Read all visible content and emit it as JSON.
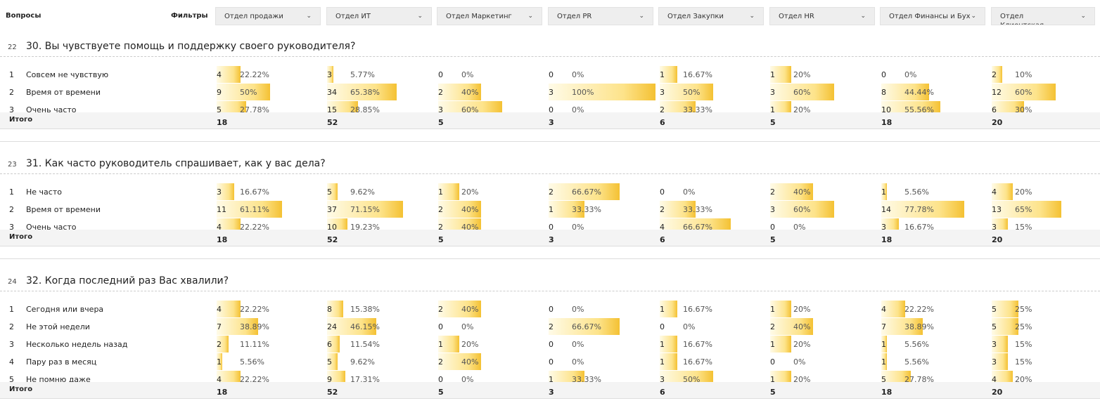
{
  "header": {
    "questions_label": "Вопросы",
    "filters_label": "Фильтры",
    "filters": [
      {
        "label": "Отдел продажи",
        "icon": "chevron-down-icon"
      },
      {
        "label": "Отдел ИТ",
        "icon": "chevron-down-icon"
      },
      {
        "label": "Отдел Маркетинг",
        "icon": "chevron-down-icon"
      },
      {
        "label": "Отдел PR",
        "icon": "chevron-down-icon"
      },
      {
        "label": "Отдел Закупки",
        "icon": "chevron-down-icon"
      },
      {
        "label": "Отдел HR",
        "icon": "chevron-down-icon"
      },
      {
        "label": "Отдел Финансы и Бух",
        "icon": "chevron-down-icon"
      },
      {
        "label": "Отдел Клиентская служба",
        "icon": "chevron-down-icon"
      }
    ]
  },
  "total_label": "Итого",
  "sections": [
    {
      "num": "22",
      "title": "30. Вы чувствуете помощь и поддержку своего руководителя?",
      "rows": [
        {
          "idx": "1",
          "label": "Совсем не чувствую",
          "cells": [
            {
              "count": "4",
              "pct": "22.22%",
              "value": 22.22
            },
            {
              "count": "3",
              "pct": "5.77%",
              "value": 5.77
            },
            {
              "count": "0",
              "pct": "0%",
              "value": 0
            },
            {
              "count": "0",
              "pct": "0%",
              "value": 0
            },
            {
              "count": "1",
              "pct": "16.67%",
              "value": 16.67
            },
            {
              "count": "1",
              "pct": "20%",
              "value": 20
            },
            {
              "count": "0",
              "pct": "0%",
              "value": 0
            },
            {
              "count": "2",
              "pct": "10%",
              "value": 10
            }
          ]
        },
        {
          "idx": "2",
          "label": "Время от времени",
          "cells": [
            {
              "count": "9",
              "pct": "50%",
              "value": 50
            },
            {
              "count": "34",
              "pct": "65.38%",
              "value": 65.38
            },
            {
              "count": "2",
              "pct": "40%",
              "value": 40
            },
            {
              "count": "3",
              "pct": "100%",
              "value": 100
            },
            {
              "count": "3",
              "pct": "50%",
              "value": 50
            },
            {
              "count": "3",
              "pct": "60%",
              "value": 60
            },
            {
              "count": "8",
              "pct": "44.44%",
              "value": 44.44
            },
            {
              "count": "12",
              "pct": "60%",
              "value": 60
            }
          ]
        },
        {
          "idx": "3",
          "label": "Очень часто",
          "cells": [
            {
              "count": "5",
              "pct": "27.78%",
              "value": 27.78
            },
            {
              "count": "15",
              "pct": "28.85%",
              "value": 28.85
            },
            {
              "count": "3",
              "pct": "60%",
              "value": 60
            },
            {
              "count": "0",
              "pct": "0%",
              "value": 0
            },
            {
              "count": "2",
              "pct": "33.33%",
              "value": 33.33
            },
            {
              "count": "1",
              "pct": "20%",
              "value": 20
            },
            {
              "count": "10",
              "pct": "55.56%",
              "value": 55.56
            },
            {
              "count": "6",
              "pct": "30%",
              "value": 30
            }
          ]
        }
      ],
      "totals": [
        "18",
        "52",
        "5",
        "3",
        "6",
        "5",
        "18",
        "20"
      ]
    },
    {
      "num": "23",
      "title": "31. Как часто руководитель спрашивает, как у вас дела?",
      "rows": [
        {
          "idx": "1",
          "label": "Не часто",
          "cells": [
            {
              "count": "3",
              "pct": "16.67%",
              "value": 16.67
            },
            {
              "count": "5",
              "pct": "9.62%",
              "value": 9.62
            },
            {
              "count": "1",
              "pct": "20%",
              "value": 20
            },
            {
              "count": "2",
              "pct": "66.67%",
              "value": 66.67
            },
            {
              "count": "0",
              "pct": "0%",
              "value": 0
            },
            {
              "count": "2",
              "pct": "40%",
              "value": 40
            },
            {
              "count": "1",
              "pct": "5.56%",
              "value": 5.56
            },
            {
              "count": "4",
              "pct": "20%",
              "value": 20
            }
          ]
        },
        {
          "idx": "2",
          "label": "Время от времени",
          "cells": [
            {
              "count": "11",
              "pct": "61.11%",
              "value": 61.11
            },
            {
              "count": "37",
              "pct": "71.15%",
              "value": 71.15
            },
            {
              "count": "2",
              "pct": "40%",
              "value": 40
            },
            {
              "count": "1",
              "pct": "33.33%",
              "value": 33.33
            },
            {
              "count": "2",
              "pct": "33.33%",
              "value": 33.33
            },
            {
              "count": "3",
              "pct": "60%",
              "value": 60
            },
            {
              "count": "14",
              "pct": "77.78%",
              "value": 77.78
            },
            {
              "count": "13",
              "pct": "65%",
              "value": 65
            }
          ]
        },
        {
          "idx": "3",
          "label": "Очень часто",
          "cells": [
            {
              "count": "4",
              "pct": "22.22%",
              "value": 22.22
            },
            {
              "count": "10",
              "pct": "19.23%",
              "value": 19.23
            },
            {
              "count": "2",
              "pct": "40%",
              "value": 40
            },
            {
              "count": "0",
              "pct": "0%",
              "value": 0
            },
            {
              "count": "4",
              "pct": "66.67%",
              "value": 66.67
            },
            {
              "count": "0",
              "pct": "0%",
              "value": 0
            },
            {
              "count": "3",
              "pct": "16.67%",
              "value": 16.67
            },
            {
              "count": "3",
              "pct": "15%",
              "value": 15
            }
          ]
        }
      ],
      "totals": [
        "18",
        "52",
        "5",
        "3",
        "6",
        "5",
        "18",
        "20"
      ]
    },
    {
      "num": "24",
      "title": "32. Когда последний раз Вас хвалили?",
      "rows": [
        {
          "idx": "1",
          "label": "Сегодня или вчера",
          "cells": [
            {
              "count": "4",
              "pct": "22.22%",
              "value": 22.22
            },
            {
              "count": "8",
              "pct": "15.38%",
              "value": 15.38
            },
            {
              "count": "2",
              "pct": "40%",
              "value": 40
            },
            {
              "count": "0",
              "pct": "0%",
              "value": 0
            },
            {
              "count": "1",
              "pct": "16.67%",
              "value": 16.67
            },
            {
              "count": "1",
              "pct": "20%",
              "value": 20
            },
            {
              "count": "4",
              "pct": "22.22%",
              "value": 22.22
            },
            {
              "count": "5",
              "pct": "25%",
              "value": 25
            }
          ]
        },
        {
          "idx": "2",
          "label": "Не этой недели",
          "cells": [
            {
              "count": "7",
              "pct": "38.89%",
              "value": 38.89
            },
            {
              "count": "24",
              "pct": "46.15%",
              "value": 46.15
            },
            {
              "count": "0",
              "pct": "0%",
              "value": 0
            },
            {
              "count": "2",
              "pct": "66.67%",
              "value": 66.67
            },
            {
              "count": "0",
              "pct": "0%",
              "value": 0
            },
            {
              "count": "2",
              "pct": "40%",
              "value": 40
            },
            {
              "count": "7",
              "pct": "38.89%",
              "value": 38.89
            },
            {
              "count": "5",
              "pct": "25%",
              "value": 25
            }
          ]
        },
        {
          "idx": "3",
          "label": "Несколько недель назад",
          "cells": [
            {
              "count": "2",
              "pct": "11.11%",
              "value": 11.11
            },
            {
              "count": "6",
              "pct": "11.54%",
              "value": 11.54
            },
            {
              "count": "1",
              "pct": "20%",
              "value": 20
            },
            {
              "count": "0",
              "pct": "0%",
              "value": 0
            },
            {
              "count": "1",
              "pct": "16.67%",
              "value": 16.67
            },
            {
              "count": "1",
              "pct": "20%",
              "value": 20
            },
            {
              "count": "1",
              "pct": "5.56%",
              "value": 5.56
            },
            {
              "count": "3",
              "pct": "15%",
              "value": 15
            }
          ]
        },
        {
          "idx": "4",
          "label": "Пару раз в месяц",
          "cells": [
            {
              "count": "1",
              "pct": "5.56%",
              "value": 5.56
            },
            {
              "count": "5",
              "pct": "9.62%",
              "value": 9.62
            },
            {
              "count": "2",
              "pct": "40%",
              "value": 40
            },
            {
              "count": "0",
              "pct": "0%",
              "value": 0
            },
            {
              "count": "1",
              "pct": "16.67%",
              "value": 16.67
            },
            {
              "count": "0",
              "pct": "0%",
              "value": 0
            },
            {
              "count": "1",
              "pct": "5.56%",
              "value": 5.56
            },
            {
              "count": "3",
              "pct": "15%",
              "value": 15
            }
          ]
        },
        {
          "idx": "5",
          "label": "Не помню даже",
          "cells": [
            {
              "count": "4",
              "pct": "22.22%",
              "value": 22.22
            },
            {
              "count": "9",
              "pct": "17.31%",
              "value": 17.31
            },
            {
              "count": "0",
              "pct": "0%",
              "value": 0
            },
            {
              "count": "1",
              "pct": "33.33%",
              "value": 33.33
            },
            {
              "count": "3",
              "pct": "50%",
              "value": 50
            },
            {
              "count": "1",
              "pct": "20%",
              "value": 20
            },
            {
              "count": "5",
              "pct": "27.78%",
              "value": 27.78
            },
            {
              "count": "4",
              "pct": "20%",
              "value": 20
            }
          ]
        }
      ],
      "totals": [
        "18",
        "52",
        "5",
        "3",
        "6",
        "5",
        "18",
        "20"
      ]
    }
  ]
}
